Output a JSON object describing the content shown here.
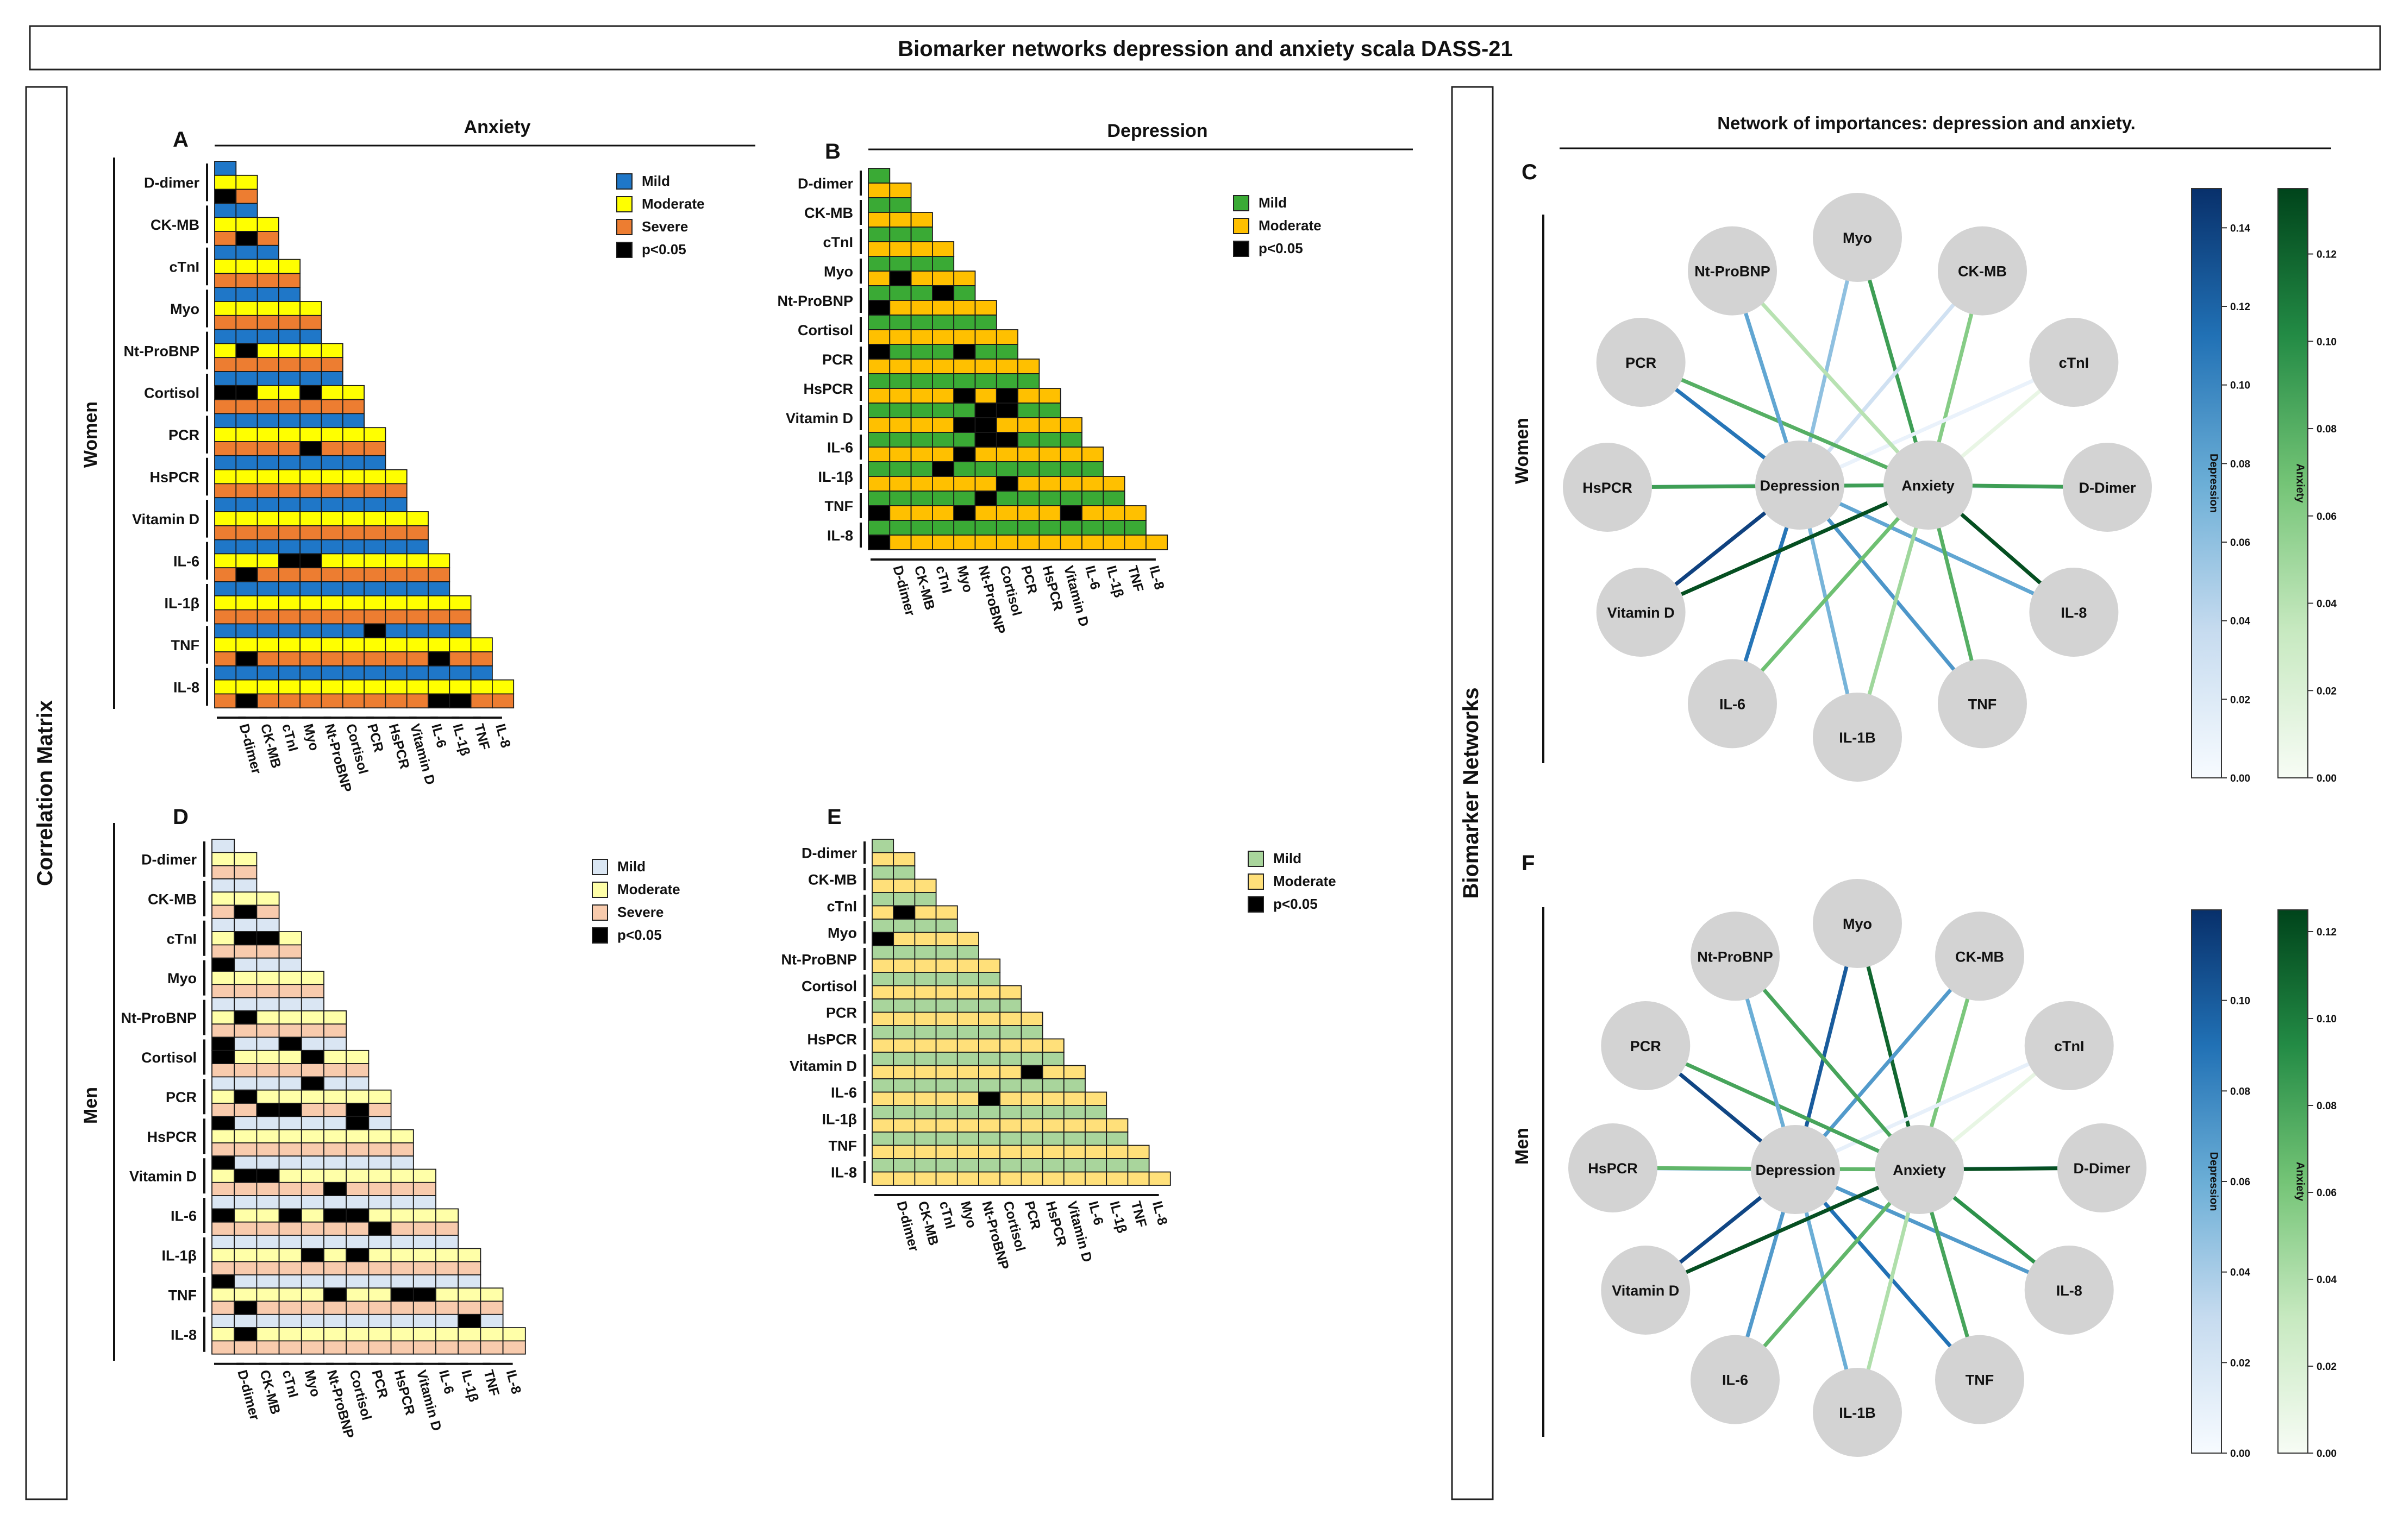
{
  "title": "Biomarker networks depression and anxiety scala DASS-21",
  "left_section_label": "Correlation Matrix",
  "right_section_label": "Biomarker Networks",
  "network_header": "Network of importances: depression and anxiety.",
  "row_labels": {
    "women": "Women",
    "men": "Men"
  },
  "biomarkers": [
    "D-dimer",
    "CK-MB",
    "cTnI",
    "Myo",
    "Nt-ProBNP",
    "Cortisol",
    "PCR",
    "HsPCR",
    "Vitamin D",
    "IL-6",
    "IL-1β",
    "TNF",
    "IL-8"
  ],
  "legend": {
    "mild": "Mild",
    "moderate": "Moderate",
    "severe": "Severe",
    "sig": "p<0.05"
  },
  "colors": {
    "A": {
      "Mild": "#1f77c8",
      "Moderate": "#ffff00",
      "Severe": "#ed7d31"
    },
    "B": {
      "Mild": "#3aaa35",
      "Moderate": "#ffc000"
    },
    "D": {
      "Mild": "#dae6f3",
      "Moderate": "#ffffa8",
      "Severe": "#f8cbad"
    },
    "E": {
      "Mild": "#a9d59c",
      "Moderate": "#ffe07a"
    },
    "sig": "#000000"
  },
  "chart_data": [
    {
      "panel": "A",
      "type": "heatmap",
      "title": "Anxiety",
      "group": "Women",
      "levels": [
        "Mild",
        "Moderate",
        "Severe"
      ],
      "row_labels": [
        "D-dimer",
        "CK-MB",
        "cTnI",
        "Myo",
        "Nt-ProBNP",
        "Cortisol",
        "PCR",
        "HsPCR",
        "Vitamin D",
        "IL-6",
        "IL-1β",
        "TNF",
        "IL-8"
      ],
      "col_labels": [
        "D-dimer",
        "CK-MB",
        "cTnI",
        "Myo",
        "Nt-ProBNP",
        "Cortisol",
        "PCR",
        "HsPCR",
        "Vitamin D",
        "IL-6",
        "IL-1β",
        "TNF",
        "IL-8"
      ],
      "significant": [
        [
          0,
          0,
          2
        ],
        [
          0,
          1,
          0
        ],
        [
          1,
          1,
          2
        ],
        [
          4,
          1,
          1
        ],
        [
          5,
          0,
          1
        ],
        [
          5,
          1,
          1
        ],
        [
          5,
          4,
          1
        ],
        [
          6,
          4,
          2
        ],
        [
          9,
          3,
          1
        ],
        [
          9,
          4,
          1
        ],
        [
          9,
          1,
          2
        ],
        [
          11,
          7,
          0
        ],
        [
          11,
          1,
          2
        ],
        [
          11,
          10,
          2
        ],
        [
          12,
          1,
          2
        ],
        [
          12,
          10,
          2
        ],
        [
          12,
          11,
          2
        ]
      ]
    },
    {
      "panel": "B",
      "type": "heatmap",
      "title": "Depression",
      "group": "Women",
      "levels": [
        "Mild",
        "Moderate"
      ],
      "row_labels": [
        "D-dimer",
        "CK-MB",
        "cTnI",
        "Myo",
        "Nt-ProBNP",
        "Cortisol",
        "PCR",
        "HsPCR",
        "Vitamin D",
        "IL-6",
        "IL-1β",
        "TNF",
        "IL-8"
      ],
      "col_labels": [
        "D-dimer",
        "CK-MB",
        "cTnI",
        "Myo",
        "Nt-ProBNP",
        "Cortisol",
        "PCR",
        "HsPCR",
        "Vitamin D",
        "IL-6",
        "IL-1β",
        "TNF",
        "IL-8"
      ],
      "significant": [
        [
          3,
          1,
          1
        ],
        [
          4,
          0,
          1
        ],
        [
          4,
          3,
          0
        ],
        [
          6,
          0,
          0
        ],
        [
          6,
          4,
          0
        ],
        [
          7,
          4,
          1
        ],
        [
          7,
          6,
          1
        ],
        [
          8,
          4,
          1
        ],
        [
          8,
          5,
          0
        ],
        [
          8,
          6,
          0
        ],
        [
          8,
          5,
          1
        ],
        [
          9,
          5,
          0
        ],
        [
          9,
          6,
          0
        ],
        [
          9,
          4,
          1
        ],
        [
          10,
          3,
          0
        ],
        [
          10,
          6,
          1
        ],
        [
          11,
          5,
          0
        ],
        [
          11,
          0,
          1
        ],
        [
          11,
          4,
          1
        ],
        [
          11,
          9,
          1
        ],
        [
          12,
          0,
          1
        ]
      ]
    },
    {
      "panel": "D",
      "type": "heatmap",
      "group": "Men",
      "levels": [
        "Mild",
        "Moderate",
        "Severe"
      ],
      "row_labels": [
        "D-dimer",
        "CK-MB",
        "cTnI",
        "Myo",
        "Nt-ProBNP",
        "Cortisol",
        "PCR",
        "HsPCR",
        "Vitamin D",
        "IL-6",
        "IL-1β",
        "TNF",
        "IL-8"
      ],
      "col_labels": [
        "D-dimer",
        "CK-MB",
        "cTnI",
        "Myo",
        "Nt-ProBNP",
        "Cortisol",
        "PCR",
        "HsPCR",
        "Vitamin D",
        "IL-6",
        "IL-1β",
        "TNF",
        "IL-8"
      ],
      "significant": [
        [
          1,
          1,
          2
        ],
        [
          2,
          1,
          1
        ],
        [
          2,
          2,
          1
        ],
        [
          3,
          0,
          0
        ],
        [
          4,
          1,
          1
        ],
        [
          5,
          0,
          0
        ],
        [
          5,
          3,
          0
        ],
        [
          5,
          0,
          1
        ],
        [
          5,
          4,
          1
        ],
        [
          6,
          4,
          0
        ],
        [
          6,
          1,
          1
        ],
        [
          6,
          2,
          2
        ],
        [
          6,
          3,
          2
        ],
        [
          6,
          6,
          2
        ],
        [
          7,
          0,
          0
        ],
        [
          7,
          6,
          0
        ],
        [
          8,
          0,
          0
        ],
        [
          8,
          1,
          1
        ],
        [
          8,
          2,
          1
        ],
        [
          8,
          5,
          2
        ],
        [
          9,
          0,
          1
        ],
        [
          9,
          3,
          1
        ],
        [
          9,
          5,
          1
        ],
        [
          9,
          6,
          1
        ],
        [
          9,
          7,
          2
        ],
        [
          10,
          4,
          1
        ],
        [
          10,
          6,
          1
        ],
        [
          11,
          0,
          0
        ],
        [
          11,
          1,
          2
        ],
        [
          11,
          5,
          1
        ],
        [
          11,
          8,
          1
        ],
        [
          11,
          9,
          1
        ],
        [
          12,
          1,
          1
        ],
        [
          12,
          11,
          0
        ]
      ]
    },
    {
      "panel": "E",
      "type": "heatmap",
      "group": "Men",
      "levels": [
        "Mild",
        "Moderate"
      ],
      "row_labels": [
        "D-dimer",
        "CK-MB",
        "cTnI",
        "Myo",
        "Nt-ProBNP",
        "Cortisol",
        "PCR",
        "HsPCR",
        "Vitamin D",
        "IL-6",
        "IL-1β",
        "TNF",
        "IL-8"
      ],
      "col_labels": [
        "D-dimer",
        "CK-MB",
        "cTnI",
        "Myo",
        "Nt-ProBNP",
        "Cortisol",
        "PCR",
        "HsPCR",
        "Vitamin D",
        "IL-6",
        "IL-1β",
        "TNF",
        "IL-8"
      ],
      "significant": [
        [
          2,
          1,
          1
        ],
        [
          3,
          0,
          1
        ],
        [
          8,
          7,
          1
        ],
        [
          9,
          5,
          1
        ]
      ]
    },
    {
      "panel": "C",
      "type": "network",
      "group": "Women",
      "center_nodes": [
        "Depression",
        "Anxiety"
      ],
      "outer_nodes": [
        "Myo",
        "CK-MB",
        "cTnI",
        "D-Dimer",
        "IL-8",
        "TNF",
        "IL-1B",
        "IL-6",
        "Vitamin D",
        "HsPCR",
        "PCR",
        "Nt-ProBNP"
      ],
      "depression_weights": [
        0.06,
        0.03,
        0.01,
        0.03,
        0.08,
        0.09,
        0.07,
        0.11,
        0.14,
        0.03,
        0.11,
        0.08
      ],
      "anxiety_weights": [
        0.09,
        0.06,
        0.01,
        0.09,
        0.13,
        0.08,
        0.05,
        0.07,
        0.13,
        0.09,
        0.08,
        0.04
      ],
      "depression_colorbar": {
        "label": "Depression",
        "ticks": [
          "0.00",
          "0.02",
          "0.04",
          "0.06",
          "0.08",
          "0.10",
          "0.12",
          "0.14"
        ]
      },
      "anxiety_colorbar": {
        "label": "Anxiety",
        "ticks": [
          "0.00",
          "0.02",
          "0.04",
          "0.06",
          "0.08",
          "0.10",
          "0.12"
        ]
      }
    },
    {
      "panel": "F",
      "type": "network",
      "group": "Men",
      "center_nodes": [
        "Depression",
        "Anxiety"
      ],
      "outer_nodes": [
        "Myo",
        "CK-MB",
        "cTnI",
        "D-Dimer",
        "IL-8",
        "TNF",
        "IL-1B",
        "IL-6",
        "Vitamin D",
        "HsPCR",
        "PCR",
        "Nt-ProBNP"
      ],
      "depression_weights": [
        0.1,
        0.07,
        0.01,
        0.03,
        0.07,
        0.09,
        0.06,
        0.07,
        0.11,
        0.06,
        0.11,
        0.06
      ],
      "anxiety_weights": [
        0.11,
        0.06,
        0.01,
        0.12,
        0.09,
        0.08,
        0.04,
        0.07,
        0.12,
        0.07,
        0.08,
        0.08
      ],
      "depression_colorbar": {
        "label": "Depression",
        "ticks": [
          "0.00",
          "0.02",
          "0.04",
          "0.06",
          "0.08",
          "0.10"
        ]
      },
      "anxiety_colorbar": {
        "label": "Anxiety",
        "ticks": [
          "0.00",
          "0.02",
          "0.04",
          "0.06",
          "0.08",
          "0.10",
          "0.12"
        ]
      }
    }
  ]
}
